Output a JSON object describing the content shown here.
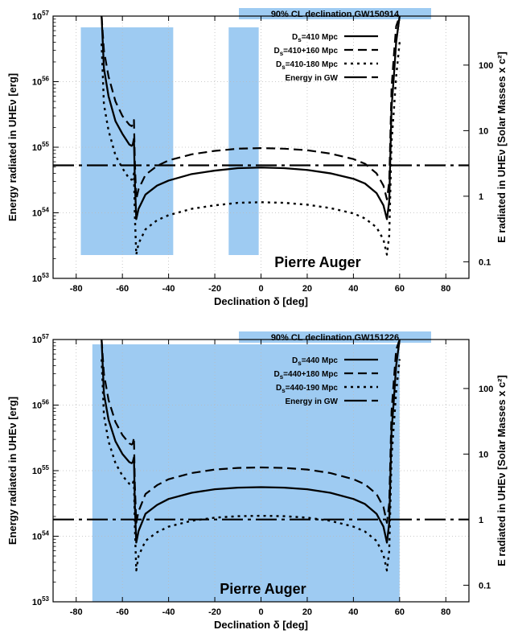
{
  "colors": {
    "band": "#9ecbf2",
    "curve": "#000000",
    "grid": "#bbbbbb"
  },
  "chart_data": [
    {
      "type": "line",
      "banner": "90% CL declination GW150914",
      "watermark": "Pierre Auger",
      "xlabel": "Declination δ [deg]",
      "ylabel": "Energy radiated in UHEν [erg]",
      "y2label": "E radiated in UHEν [Solar Masses x c²]",
      "xlim": [
        -90,
        90
      ],
      "ylim": [
        1e+53,
        1e+57
      ],
      "yscale": "log",
      "grid": true,
      "legend_position": "top-right",
      "xticks": [
        -80,
        -60,
        -40,
        -20,
        0,
        20,
        40,
        60,
        80
      ],
      "yticks": [
        {
          "value": 1e+53,
          "mant": "10",
          "exp": "53"
        },
        {
          "value": 1e+54,
          "mant": "10",
          "exp": "54"
        },
        {
          "value": 1e+55,
          "mant": "10",
          "exp": "55"
        },
        {
          "value": 1e+56,
          "mant": "10",
          "exp": "56"
        },
        {
          "value": 1e+57,
          "mant": "10",
          "exp": "57"
        }
      ],
      "y2ticks": [
        {
          "label": "100",
          "value": 1.79e+56
        },
        {
          "label": "10",
          "value": 1.79e+55
        },
        {
          "label": "1",
          "value": 1.79e+54
        },
        {
          "label": "0.1",
          "value": 1.79e+53
        }
      ],
      "bands": [
        [
          -78,
          -38
        ],
        [
          -14,
          -1
        ]
      ],
      "gw_energy": 5.3e+54,
      "series": [
        {
          "name": "Ds=410 Mpc",
          "legend": {
            "main": "D",
            "sub": "s",
            "rest": "=410 Mpc"
          },
          "style": "solid",
          "points": [
            [
              -69,
              1e+57
            ],
            [
              -68,
              1.6e+56
            ],
            [
              -66,
              6e+55
            ],
            [
              -63,
              2.5e+55
            ],
            [
              -60,
              1.6e+55
            ],
            [
              -57,
              1.1e+55
            ],
            [
              -56,
              1.05e+55
            ],
            [
              -55.5,
              1.1e+55
            ],
            [
              -55,
              1.35e+55
            ],
            [
              -54.6,
              3e+54
            ],
            [
              -54,
              8e+53
            ],
            [
              -53,
              1.15e+54
            ],
            [
              -50,
              1.9e+54
            ],
            [
              -45,
              2.6e+54
            ],
            [
              -40,
              3.1e+54
            ],
            [
              -30,
              3.9e+54
            ],
            [
              -20,
              4.4e+54
            ],
            [
              -10,
              4.8e+54
            ],
            [
              0,
              4.9e+54
            ],
            [
              10,
              4.8e+54
            ],
            [
              20,
              4.5e+54
            ],
            [
              30,
              4e+54
            ],
            [
              40,
              3.3e+54
            ],
            [
              45,
              2.8e+54
            ],
            [
              50,
              2e+54
            ],
            [
              53,
              1.3e+54
            ],
            [
              54.5,
              8e+53
            ],
            [
              55.5,
              1.5e+54
            ],
            [
              56.5,
              4e+55
            ],
            [
              57.5,
              1.2e+56
            ],
            [
              58.5,
              4e+56
            ],
            [
              60,
              1e+57
            ]
          ]
        },
        {
          "name": "Ds=410+160 Mpc",
          "legend": {
            "main": "D",
            "sub": "s",
            "rest": "=410+160 Mpc"
          },
          "style": "dashed",
          "points": [
            [
              -69,
              1e+57
            ],
            [
              -68,
              3e+56
            ],
            [
              -66,
              1.2e+56
            ],
            [
              -63,
              5e+55
            ],
            [
              -60,
              3e+55
            ],
            [
              -57,
              2.2e+55
            ],
            [
              -56,
              2.1e+55
            ],
            [
              -55.5,
              2.2e+55
            ],
            [
              -55,
              2.6e+55
            ],
            [
              -54.6,
              6e+54
            ],
            [
              -54,
              1.6e+54
            ],
            [
              -53,
              2.3e+54
            ],
            [
              -50,
              3.8e+54
            ],
            [
              -45,
              5.2e+54
            ],
            [
              -40,
              6.3e+54
            ],
            [
              -30,
              7.8e+54
            ],
            [
              -20,
              8.8e+54
            ],
            [
              -10,
              9.5e+54
            ],
            [
              0,
              9.7e+54
            ],
            [
              10,
              9.5e+54
            ],
            [
              20,
              9e+54
            ],
            [
              30,
              8e+54
            ],
            [
              40,
              6.6e+54
            ],
            [
              45,
              5.6e+54
            ],
            [
              50,
              4e+54
            ],
            [
              53,
              2.6e+54
            ],
            [
              54.5,
              1.6e+54
            ],
            [
              55.5,
              3e+54
            ],
            [
              56.5,
              8e+55
            ],
            [
              57.5,
              2.5e+56
            ],
            [
              58.5,
              7e+56
            ],
            [
              60,
              1e+57
            ]
          ]
        },
        {
          "name": "Ds=410-180 Mpc",
          "legend": {
            "main": "D",
            "sub": "s",
            "rest": "=410-180 Mpc"
          },
          "style": "dotted",
          "points": [
            [
              -69,
              3.8e+56
            ],
            [
              -68,
              4.5e+55
            ],
            [
              -66,
              1.8e+55
            ],
            [
              -63,
              7.5e+54
            ],
            [
              -60,
              4.8e+54
            ],
            [
              -57,
              3.3e+54
            ],
            [
              -56,
              3.2e+54
            ],
            [
              -55.5,
              3.3e+54
            ],
            [
              -55,
              4e+54
            ],
            [
              -54.6,
              9e+53
            ],
            [
              -54,
              2.3e+53
            ],
            [
              -53,
              3.4e+53
            ],
            [
              -50,
              5.6e+53
            ],
            [
              -45,
              7.7e+53
            ],
            [
              -40,
              9.2e+53
            ],
            [
              -30,
              1.15e+54
            ],
            [
              -20,
              1.3e+54
            ],
            [
              -10,
              1.42e+54
            ],
            [
              0,
              1.45e+54
            ],
            [
              10,
              1.42e+54
            ],
            [
              20,
              1.33e+54
            ],
            [
              30,
              1.18e+54
            ],
            [
              40,
              9.8e+53
            ],
            [
              45,
              8.2e+53
            ],
            [
              50,
              6e+53
            ],
            [
              53,
              3.9e+53
            ],
            [
              54.5,
              2.3e+53
            ],
            [
              55.5,
              4.5e+53
            ],
            [
              56.5,
              1.2e+55
            ],
            [
              57.5,
              3.6e+55
            ],
            [
              58.5,
              1.2e+56
            ],
            [
              60,
              4e+56
            ]
          ]
        },
        {
          "name": "Energy in GW",
          "legend": {
            "main": "Energy in GW",
            "sub": "",
            "rest": ""
          },
          "style": "dashdot",
          "points": [
            [
              -90,
              5.3e+54
            ],
            [
              90,
              5.3e+54
            ]
          ]
        }
      ]
    },
    {
      "type": "line",
      "banner": "90% CL declination GW151226",
      "watermark": "Pierre Auger",
      "xlabel": "Declination δ [deg]",
      "ylabel": "Energy radiated in UHEν [erg]",
      "y2label": "E radiated in UHEν [Solar Masses x c²]",
      "xlim": [
        -90,
        90
      ],
      "ylim": [
        1e+53,
        1e+57
      ],
      "yscale": "log",
      "grid": true,
      "legend_position": "top-right",
      "xticks": [
        -80,
        -60,
        -40,
        -20,
        0,
        20,
        40,
        60,
        80
      ],
      "yticks": [
        {
          "value": 1e+53,
          "mant": "10",
          "exp": "53"
        },
        {
          "value": 1e+54,
          "mant": "10",
          "exp": "54"
        },
        {
          "value": 1e+55,
          "mant": "10",
          "exp": "55"
        },
        {
          "value": 1e+56,
          "mant": "10",
          "exp": "56"
        },
        {
          "value": 1e+57,
          "mant": "10",
          "exp": "57"
        }
      ],
      "y2ticks": [
        {
          "label": "100",
          "value": 1.79e+56
        },
        {
          "label": "10",
          "value": 1.79e+55
        },
        {
          "label": "1",
          "value": 1.79e+54
        },
        {
          "label": "0.1",
          "value": 1.79e+53
        }
      ],
      "bands": [
        [
          -73,
          60
        ]
      ],
      "gw_energy": 1.8e+54,
      "series": [
        {
          "name": "Ds=440 Mpc",
          "legend": {
            "main": "D",
            "sub": "s",
            "rest": "=440 Mpc"
          },
          "style": "solid",
          "points": [
            [
              -69,
              1e+57
            ],
            [
              -68,
              1.5e+56
            ],
            [
              -66,
              6e+55
            ],
            [
              -63,
              2.8e+55
            ],
            [
              -60,
              1.8e+55
            ],
            [
              -57,
              1.35e+55
            ],
            [
              -56,
              1.3e+55
            ],
            [
              -55.5,
              1.35e+55
            ],
            [
              -55,
              1.6e+55
            ],
            [
              -54.6,
              3e+54
            ],
            [
              -54,
              8e+53
            ],
            [
              -53,
              1.2e+54
            ],
            [
              -50,
              2.2e+54
            ],
            [
              -45,
              3e+54
            ],
            [
              -40,
              3.7e+54
            ],
            [
              -30,
              4.6e+54
            ],
            [
              -20,
              5.2e+54
            ],
            [
              -10,
              5.5e+54
            ],
            [
              0,
              5.6e+54
            ],
            [
              10,
              5.5e+54
            ],
            [
              20,
              5.2e+54
            ],
            [
              30,
              4.6e+54
            ],
            [
              40,
              3.7e+54
            ],
            [
              45,
              3.1e+54
            ],
            [
              50,
              2.2e+54
            ],
            [
              53,
              1.4e+54
            ],
            [
              54.5,
              8e+53
            ],
            [
              55.5,
              1.6e+54
            ],
            [
              56.5,
              4e+55
            ],
            [
              57.5,
              1.2e+56
            ],
            [
              58.5,
              4e+56
            ],
            [
              60,
              1e+57
            ]
          ]
        },
        {
          "name": "Ds=440+180 Mpc",
          "legend": {
            "main": "D",
            "sub": "s",
            "rest": "=440+180 Mpc"
          },
          "style": "dashed",
          "points": [
            [
              -69,
              1e+57
            ],
            [
              -68,
              3e+56
            ],
            [
              -66,
              1.2e+56
            ],
            [
              -63,
              5.5e+55
            ],
            [
              -60,
              3.5e+55
            ],
            [
              -57,
              2.6e+55
            ],
            [
              -56,
              2.5e+55
            ],
            [
              -55.5,
              2.6e+55
            ],
            [
              -55,
              3.2e+55
            ],
            [
              -54.6,
              6e+54
            ],
            [
              -54,
              1.6e+54
            ],
            [
              -53,
              2.4e+54
            ],
            [
              -50,
              4.4e+54
            ],
            [
              -45,
              6e+54
            ],
            [
              -40,
              7.4e+54
            ],
            [
              -30,
              9.2e+54
            ],
            [
              -20,
              1.04e+55
            ],
            [
              -10,
              1.1e+55
            ],
            [
              0,
              1.12e+55
            ],
            [
              10,
              1.1e+55
            ],
            [
              20,
              1.04e+55
            ],
            [
              30,
              9.2e+54
            ],
            [
              40,
              7.4e+54
            ],
            [
              45,
              6.2e+54
            ],
            [
              50,
              4.4e+54
            ],
            [
              53,
              2.8e+54
            ],
            [
              54.5,
              1.6e+54
            ],
            [
              55.5,
              3.2e+54
            ],
            [
              56.5,
              8e+55
            ],
            [
              57.5,
              2.4e+56
            ],
            [
              58.5,
              7e+56
            ],
            [
              60,
              1e+57
            ]
          ]
        },
        {
          "name": "Ds=440-190 Mpc",
          "legend": {
            "main": "D",
            "sub": "s",
            "rest": "=440-190 Mpc"
          },
          "style": "dotted",
          "points": [
            [
              -69,
              5e+56
            ],
            [
              -68,
              7e+55
            ],
            [
              -66,
              2.8e+55
            ],
            [
              -63,
              1.3e+55
            ],
            [
              -60,
              8.4e+54
            ],
            [
              -57,
              6.3e+54
            ],
            [
              -56,
              6e+54
            ],
            [
              -55.5,
              6.3e+54
            ],
            [
              -55,
              7.5e+54
            ],
            [
              -54.6,
              1.4e+54
            ],
            [
              -54,
              3e+53
            ],
            [
              -53,
              5e+53
            ],
            [
              -50,
              8.5e+53
            ],
            [
              -45,
              1.15e+54
            ],
            [
              -40,
              1.4e+54
            ],
            [
              -30,
              1.72e+54
            ],
            [
              -20,
              1.92e+54
            ],
            [
              -10,
              2.02e+54
            ],
            [
              0,
              2.05e+54
            ],
            [
              10,
              2.02e+54
            ],
            [
              20,
              1.92e+54
            ],
            [
              30,
              1.72e+54
            ],
            [
              40,
              1.4e+54
            ],
            [
              45,
              1.18e+54
            ],
            [
              50,
              8.5e+53
            ],
            [
              53,
              5.2e+53
            ],
            [
              54.5,
              3e+53
            ],
            [
              55.5,
              6e+53
            ],
            [
              56.5,
              1.6e+55
            ],
            [
              57.5,
              5e+55
            ],
            [
              58.5,
              1.6e+56
            ],
            [
              60,
              5e+56
            ]
          ]
        },
        {
          "name": "Energy in GW",
          "legend": {
            "main": "Energy in GW",
            "sub": "",
            "rest": ""
          },
          "style": "dashdot",
          "points": [
            [
              -90,
              1.8e+54
            ],
            [
              90,
              1.8e+54
            ]
          ]
        }
      ]
    }
  ]
}
